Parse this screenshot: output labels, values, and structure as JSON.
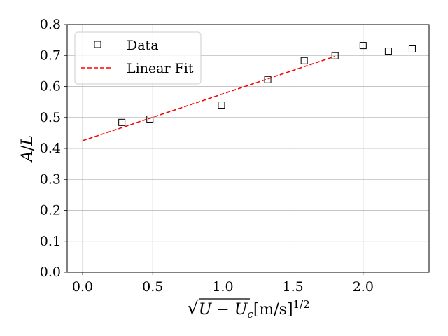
{
  "chart_data": {
    "type": "scatter",
    "xlabel": {
      "radicand_U": "U",
      "radicand_minus": " − ",
      "radicand_Uc_base": "U",
      "radicand_Uc_sub": "c",
      "unit": "[m/s]",
      "unit_exp": "1/2"
    },
    "ylabel": {
      "numerator": "A",
      "slash": "/",
      "denominator": "L"
    },
    "xlim": [
      -0.11,
      2.47
    ],
    "ylim": [
      0.0,
      0.8
    ],
    "xticks": [
      0.0,
      0.5,
      1.0,
      1.5,
      2.0
    ],
    "xtick_labels": [
      "0.0",
      "0.5",
      "1.0",
      "1.5",
      "2.0"
    ],
    "yticks": [
      0.0,
      0.1,
      0.2,
      0.3,
      0.4,
      0.5,
      0.6,
      0.7,
      0.8
    ],
    "ytick_labels": [
      "0.0",
      "0.1",
      "0.2",
      "0.3",
      "0.4",
      "0.5",
      "0.6",
      "0.7",
      "0.8"
    ],
    "grid": true,
    "legend_position": "top-left",
    "series": [
      {
        "name": "Data",
        "kind": "scatter",
        "marker": "open-square",
        "color": "#000000",
        "x": [
          0.28,
          0.48,
          0.99,
          1.32,
          1.58,
          1.8,
          2.0,
          2.18,
          2.35
        ],
        "y": [
          0.484,
          0.495,
          0.54,
          0.622,
          0.683,
          0.699,
          0.732,
          0.714,
          0.721
        ]
      },
      {
        "name": "Linear Fit",
        "kind": "line",
        "style": "dashed",
        "color": "#ff0000",
        "x": [
          0.0,
          1.8
        ],
        "y": [
          0.425,
          0.697
        ]
      }
    ]
  }
}
